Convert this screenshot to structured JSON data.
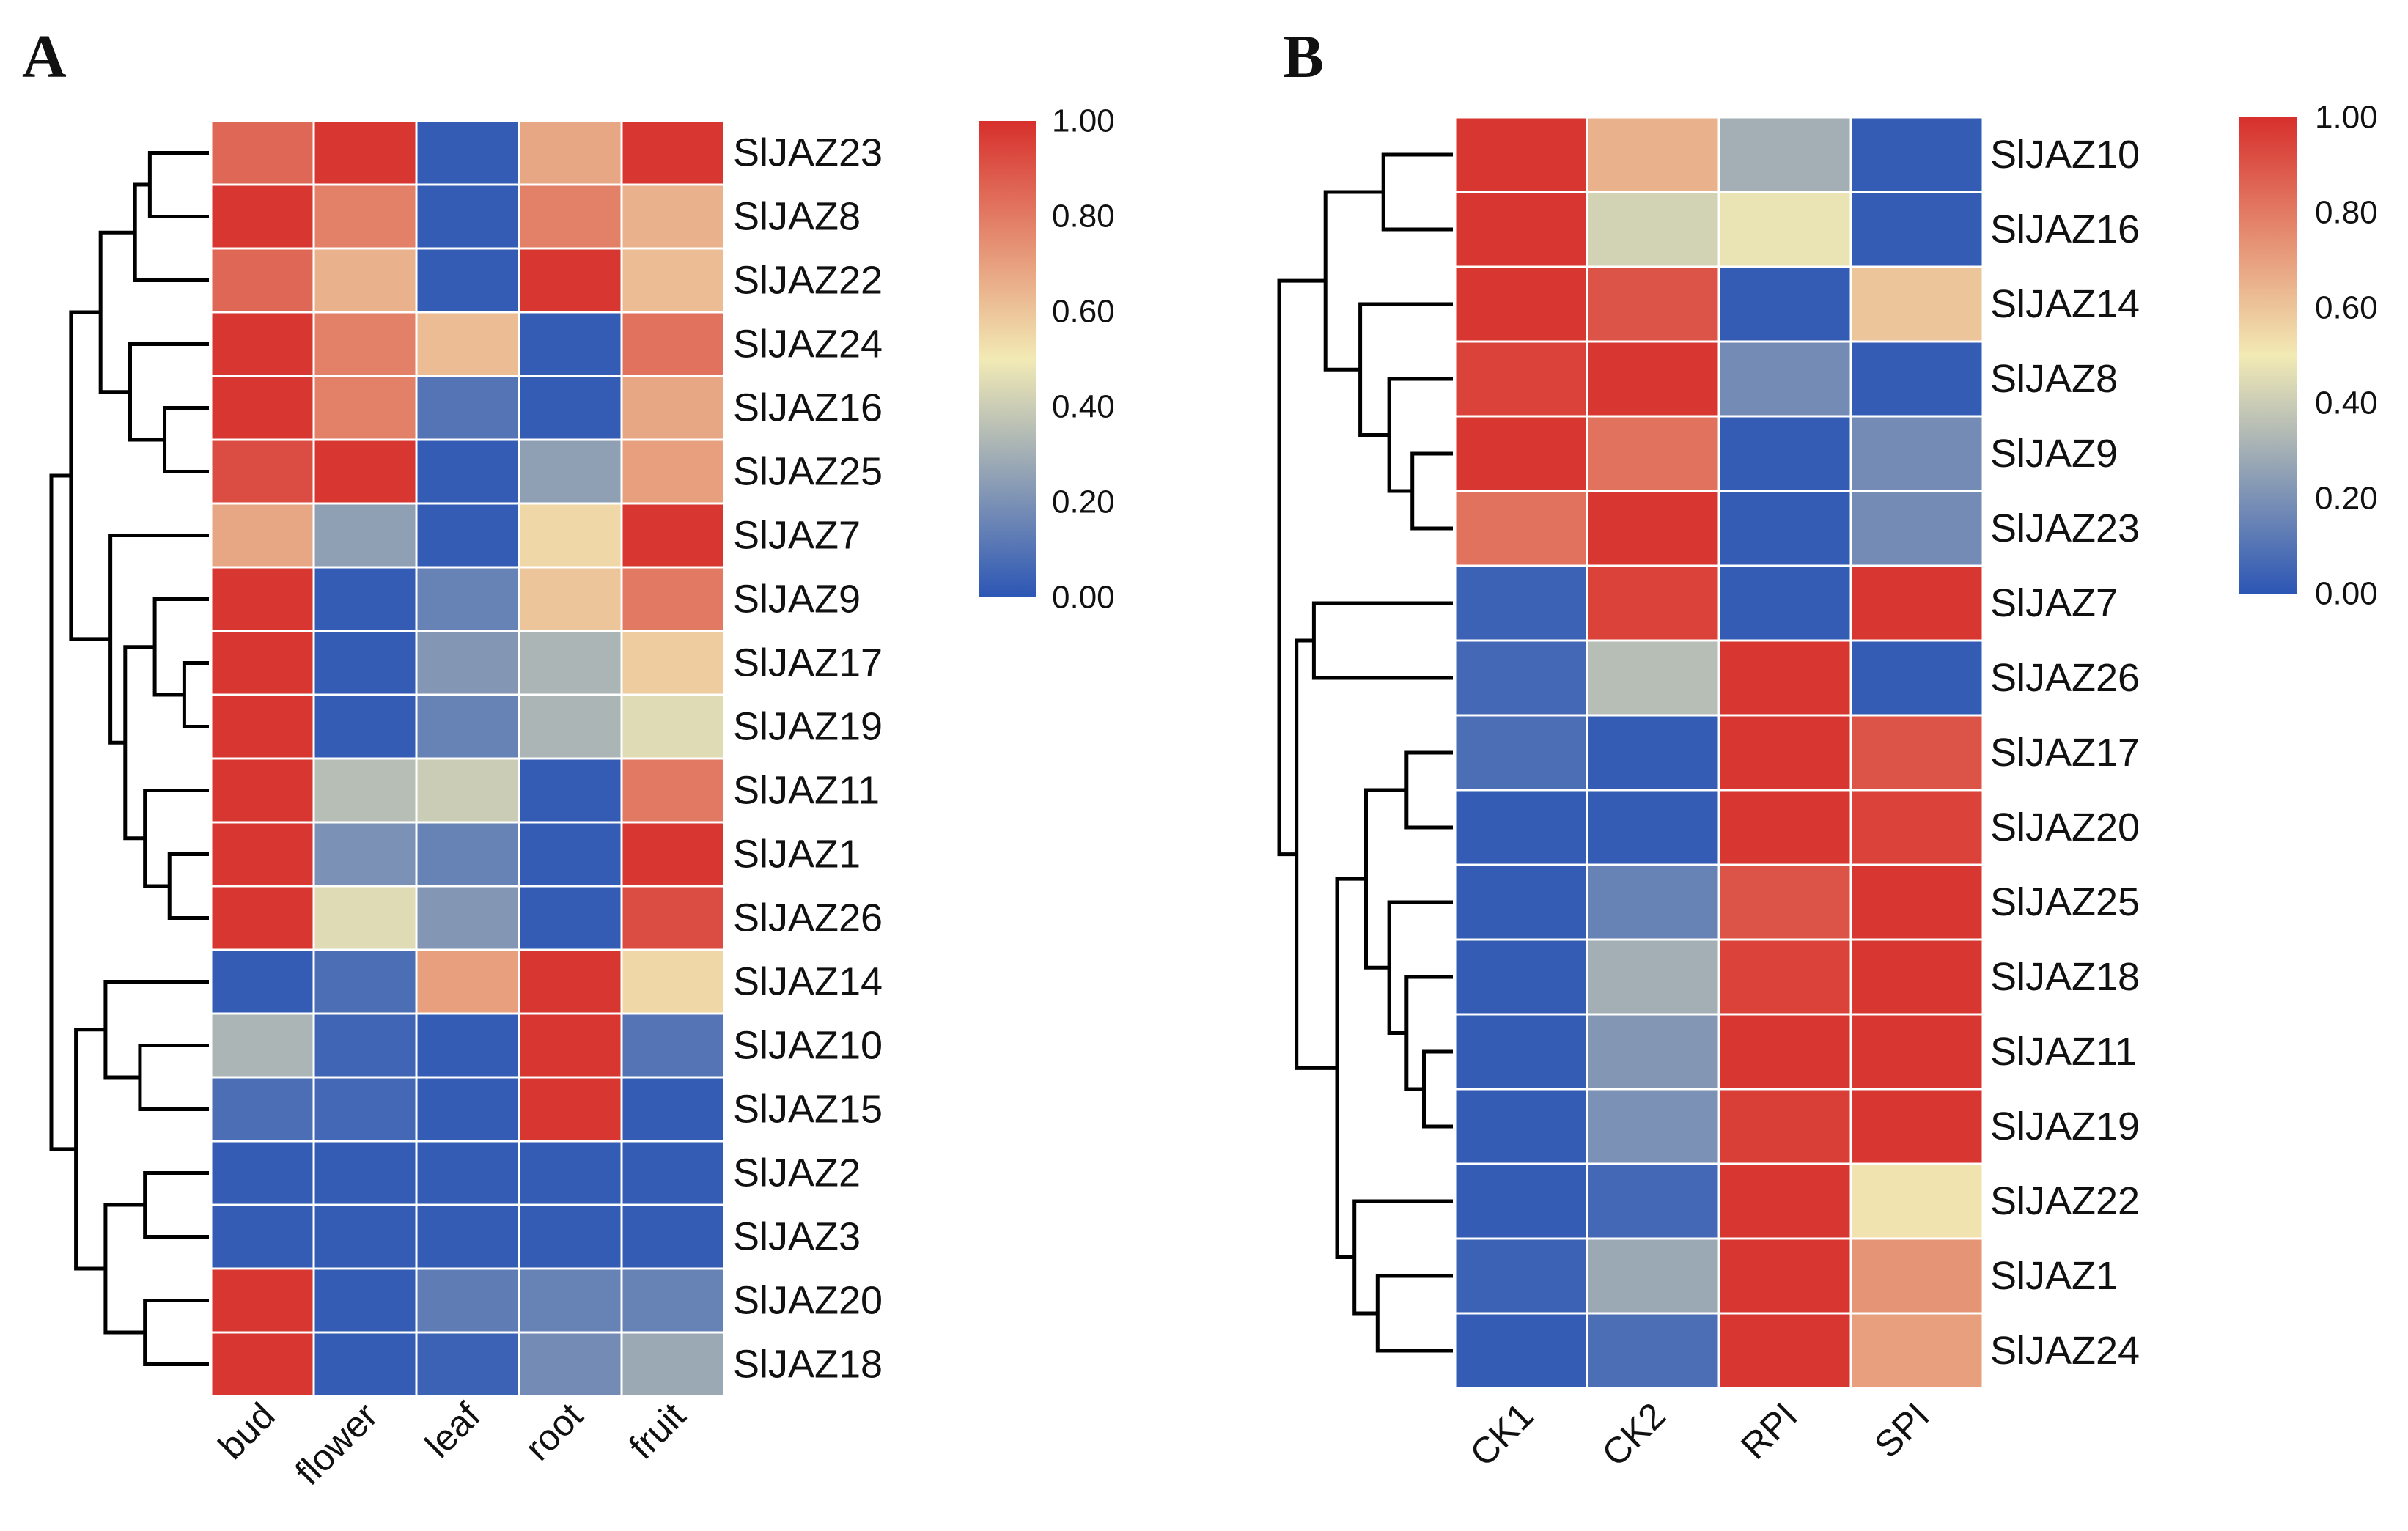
{
  "palette": {
    "low": "#2c56b5",
    "mid": "#f2eab5",
    "high": "#d72f2c",
    "line": "#000000",
    "background": "#ffffff"
  },
  "chart_data": [
    {
      "type": "heatmap",
      "panel_label": "A",
      "title": "",
      "columns": [
        "bud",
        "flower",
        "leaf",
        "root",
        "fruit"
      ],
      "rows": [
        "SlJAZ23",
        "SlJAZ8",
        "SlJAZ22",
        "SlJAZ24",
        "SlJAZ16",
        "SlJAZ25",
        "SlJAZ7",
        "SlJAZ9",
        "SlJAZ17",
        "SlJAZ19",
        "SlJAZ11",
        "SlJAZ1",
        "SlJAZ26",
        "SlJAZ14",
        "SlJAZ10",
        "SlJAZ15",
        "SlJAZ2",
        "SlJAZ3",
        "SlJAZ20",
        "SlJAZ18"
      ],
      "values": [
        [
          0.85,
          0.98,
          0.02,
          0.68,
          0.98
        ],
        [
          0.98,
          0.78,
          0.02,
          0.78,
          0.65
        ],
        [
          0.85,
          0.65,
          0.02,
          0.98,
          0.62
        ],
        [
          0.98,
          0.78,
          0.62,
          0.02,
          0.82
        ],
        [
          0.98,
          0.78,
          0.1,
          0.02,
          0.68
        ],
        [
          0.92,
          0.98,
          0.02,
          0.25,
          0.7
        ],
        [
          0.68,
          0.25,
          0.02,
          0.55,
          0.98
        ],
        [
          0.98,
          0.02,
          0.15,
          0.6,
          0.8
        ],
        [
          0.98,
          0.02,
          0.22,
          0.32,
          0.58
        ],
        [
          0.98,
          0.02,
          0.15,
          0.32,
          0.45
        ],
        [
          0.98,
          0.35,
          0.4,
          0.02,
          0.8
        ],
        [
          0.98,
          0.2,
          0.15,
          0.02,
          0.98
        ],
        [
          0.98,
          0.45,
          0.22,
          0.02,
          0.92
        ],
        [
          0.02,
          0.08,
          0.7,
          0.98,
          0.55
        ],
        [
          0.32,
          0.05,
          0.02,
          0.98,
          0.1
        ],
        [
          0.08,
          0.06,
          0.02,
          0.98,
          0.02
        ],
        [
          0.02,
          0.02,
          0.02,
          0.02,
          0.02
        ],
        [
          0.02,
          0.02,
          0.02,
          0.02,
          0.02
        ],
        [
          0.98,
          0.02,
          0.13,
          0.15,
          0.15
        ],
        [
          0.98,
          0.02,
          0.04,
          0.18,
          0.28
        ]
      ],
      "dendrogram": {
        "rows": [
          {
            "a": 0,
            "b": 1,
            "h": 1.2
          },
          {
            "a": 20,
            "b": 2,
            "h": 1.5
          },
          {
            "a": 4,
            "b": 5,
            "h": 0.9
          },
          {
            "a": 3,
            "b": 22,
            "h": 1.6
          },
          {
            "a": 21,
            "b": 23,
            "h": 2.2
          },
          {
            "a": 8,
            "b": 9,
            "h": 0.5
          },
          {
            "a": 7,
            "b": 25,
            "h": 1.1
          },
          {
            "a": 11,
            "b": 12,
            "h": 0.8
          },
          {
            "a": 10,
            "b": 27,
            "h": 1.3
          },
          {
            "a": 26,
            "b": 28,
            "h": 1.7
          },
          {
            "a": 6,
            "b": 29,
            "h": 2.0
          },
          {
            "a": 24,
            "b": 30,
            "h": 2.8
          },
          {
            "a": 14,
            "b": 15,
            "h": 1.4
          },
          {
            "a": 13,
            "b": 32,
            "h": 2.1
          },
          {
            "a": 16,
            "b": 17,
            "h": 1.3
          },
          {
            "a": 18,
            "b": 19,
            "h": 1.3
          },
          {
            "a": 34,
            "b": 35,
            "h": 2.1
          },
          {
            "a": 33,
            "b": 36,
            "h": 2.7
          },
          {
            "a": 31,
            "b": 37,
            "h": 3.2
          }
        ]
      },
      "colorbar": {
        "ticks": [
          "1.00",
          "0.80",
          "0.60",
          "0.40",
          "0.20",
          "0.00"
        ],
        "range": [
          0,
          1
        ]
      }
    },
    {
      "type": "heatmap",
      "panel_label": "B",
      "title": "",
      "columns": [
        "CK1",
        "CK2",
        "RPI",
        "SPI"
      ],
      "rows": [
        "SlJAZ10",
        "SlJAZ16",
        "SlJAZ14",
        "SlJAZ8",
        "SlJAZ9",
        "SlJAZ23",
        "SlJAZ7",
        "SlJAZ26",
        "SlJAZ17",
        "SlJAZ20",
        "SlJAZ25",
        "SlJAZ18",
        "SlJAZ11",
        "SlJAZ19",
        "SlJAZ22",
        "SlJAZ1",
        "SlJAZ24"
      ],
      "values": [
        [
          0.98,
          0.65,
          0.3,
          0.02
        ],
        [
          0.98,
          0.42,
          0.48,
          0.02
        ],
        [
          0.98,
          0.9,
          0.02,
          0.6
        ],
        [
          0.95,
          0.98,
          0.18,
          0.02
        ],
        [
          0.98,
          0.82,
          0.02,
          0.18
        ],
        [
          0.82,
          0.98,
          0.02,
          0.18
        ],
        [
          0.04,
          0.95,
          0.02,
          0.98
        ],
        [
          0.06,
          0.35,
          0.98,
          0.02
        ],
        [
          0.08,
          0.02,
          0.98,
          0.9
        ],
        [
          0.02,
          0.02,
          0.98,
          0.95
        ],
        [
          0.02,
          0.15,
          0.9,
          0.98
        ],
        [
          0.02,
          0.3,
          0.95,
          0.98
        ],
        [
          0.02,
          0.22,
          0.98,
          0.98
        ],
        [
          0.02,
          0.2,
          0.96,
          0.98
        ],
        [
          0.02,
          0.06,
          0.98,
          0.52
        ],
        [
          0.04,
          0.28,
          0.98,
          0.73
        ],
        [
          0.02,
          0.08,
          0.98,
          0.7
        ]
      ],
      "dendrogram": {
        "rows": [
          {
            "a": 0,
            "b": 1,
            "h": 1.2
          },
          {
            "a": 4,
            "b": 5,
            "h": 0.7
          },
          {
            "a": 3,
            "b": 18,
            "h": 1.1
          },
          {
            "a": 2,
            "b": 19,
            "h": 1.6
          },
          {
            "a": 17,
            "b": 20,
            "h": 2.2
          },
          {
            "a": 6,
            "b": 7,
            "h": 2.4
          },
          {
            "a": 8,
            "b": 9,
            "h": 0.8
          },
          {
            "a": 12,
            "b": 13,
            "h": 0.5
          },
          {
            "a": 11,
            "b": 24,
            "h": 0.8
          },
          {
            "a": 10,
            "b": 25,
            "h": 1.1
          },
          {
            "a": 23,
            "b": 26,
            "h": 1.5
          },
          {
            "a": 15,
            "b": 16,
            "h": 1.3
          },
          {
            "a": 14,
            "b": 28,
            "h": 1.7
          },
          {
            "a": 27,
            "b": 29,
            "h": 2.0
          },
          {
            "a": 22,
            "b": 30,
            "h": 2.7
          },
          {
            "a": 21,
            "b": 31,
            "h": 3.0
          }
        ]
      },
      "colorbar": {
        "ticks": [
          "1.00",
          "0.80",
          "0.60",
          "0.40",
          "0.20",
          "0.00"
        ],
        "range": [
          0,
          1
        ]
      }
    }
  ]
}
